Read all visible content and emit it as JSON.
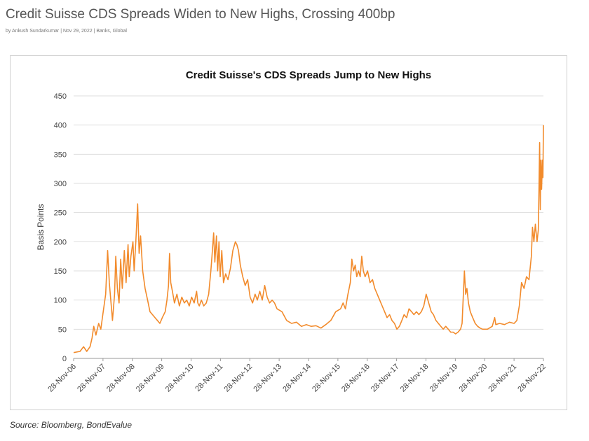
{
  "article": {
    "headline": "Credit Suisse CDS Spreads Widen to New Highs, Crossing 400bp",
    "byline": "by Ankush Sundarkumar | Nov 29, 2022 | Banks, Global",
    "source": "Source: Bloomberg, BondEvalue"
  },
  "colors": {
    "line": "#F28B2C",
    "grid": "#dddddd"
  },
  "chart_data": {
    "type": "line",
    "title": "Credit Suisse's CDS Spreads Jump to New Highs",
    "ylabel": "Basis Points",
    "xlabel": "",
    "ylim": [
      0,
      450
    ],
    "yticks": [
      0,
      50,
      100,
      150,
      200,
      250,
      300,
      350,
      400,
      450
    ],
    "xlim": [
      "2006-11-28",
      "2022-11-28"
    ],
    "xtick_labels": [
      "28-Nov-06",
      "28-Nov-07",
      "28-Nov-08",
      "28-Nov-09",
      "28-Nov-10",
      "28-Nov-11",
      "28-Nov-12",
      "28-Nov-13",
      "28-Nov-14",
      "28-Nov-15",
      "28-Nov-16",
      "28-Nov-17",
      "28-Nov-18",
      "28-Nov-19",
      "28-Nov-20",
      "28-Nov-21",
      "28-Nov-22"
    ],
    "grid": "horizontal",
    "series": [
      {
        "points": [
          [
            "2006-11-28",
            10
          ],
          [
            "2007-02-15",
            12
          ],
          [
            "2007-04-01",
            20
          ],
          [
            "2007-05-10",
            12
          ],
          [
            "2007-06-20",
            20
          ],
          [
            "2007-07-15",
            35
          ],
          [
            "2007-08-05",
            55
          ],
          [
            "2007-09-01",
            40
          ],
          [
            "2007-10-05",
            60
          ],
          [
            "2007-11-01",
            50
          ],
          [
            "2007-12-01",
            80
          ],
          [
            "2008-01-01",
            110
          ],
          [
            "2008-01-25",
            185
          ],
          [
            "2008-02-15",
            130
          ],
          [
            "2008-03-10",
            90
          ],
          [
            "2008-03-25",
            65
          ],
          [
            "2008-04-20",
            110
          ],
          [
            "2008-05-05",
            175
          ],
          [
            "2008-05-25",
            120
          ],
          [
            "2008-06-15",
            95
          ],
          [
            "2008-07-05",
            170
          ],
          [
            "2008-07-25",
            120
          ],
          [
            "2008-08-20",
            185
          ],
          [
            "2008-09-10",
            130
          ],
          [
            "2008-10-05",
            195
          ],
          [
            "2008-10-20",
            140
          ],
          [
            "2008-11-10",
            175
          ],
          [
            "2008-12-05",
            200
          ],
          [
            "2008-12-20",
            150
          ],
          [
            "2009-01-10",
            200
          ],
          [
            "2009-02-01",
            265
          ],
          [
            "2009-02-20",
            180
          ],
          [
            "2009-03-10",
            210
          ],
          [
            "2009-04-05",
            150
          ],
          [
            "2009-05-05",
            120
          ],
          [
            "2009-06-05",
            100
          ],
          [
            "2009-07-05",
            80
          ],
          [
            "2009-08-05",
            75
          ],
          [
            "2009-09-05",
            70
          ],
          [
            "2009-10-05",
            65
          ],
          [
            "2009-11-05",
            60
          ],
          [
            "2009-12-05",
            70
          ],
          [
            "2010-01-10",
            80
          ],
          [
            "2010-02-01",
            100
          ],
          [
            "2010-02-20",
            125
          ],
          [
            "2010-03-05",
            180
          ],
          [
            "2010-03-20",
            130
          ],
          [
            "2010-04-10",
            115
          ],
          [
            "2010-05-05",
            95
          ],
          [
            "2010-06-05",
            110
          ],
          [
            "2010-07-05",
            90
          ],
          [
            "2010-08-05",
            105
          ],
          [
            "2010-09-05",
            95
          ],
          [
            "2010-10-05",
            100
          ],
          [
            "2010-11-05",
            90
          ],
          [
            "2010-12-05",
            105
          ],
          [
            "2011-01-05",
            95
          ],
          [
            "2011-02-05",
            115
          ],
          [
            "2011-02-20",
            95
          ],
          [
            "2011-03-10",
            90
          ],
          [
            "2011-04-05",
            100
          ],
          [
            "2011-05-05",
            90
          ],
          [
            "2011-06-05",
            95
          ],
          [
            "2011-07-05",
            110
          ],
          [
            "2011-08-01",
            150
          ],
          [
            "2011-08-15",
            175
          ],
          [
            "2011-09-05",
            215
          ],
          [
            "2011-09-20",
            165
          ],
          [
            "2011-10-10",
            210
          ],
          [
            "2011-10-25",
            150
          ],
          [
            "2011-11-10",
            200
          ],
          [
            "2011-11-25",
            140
          ],
          [
            "2011-12-15",
            185
          ],
          [
            "2012-01-05",
            130
          ],
          [
            "2012-02-01",
            145
          ],
          [
            "2012-03-01",
            135
          ],
          [
            "2012-04-01",
            155
          ],
          [
            "2012-05-01",
            185
          ],
          [
            "2012-06-01",
            200
          ],
          [
            "2012-06-20",
            195
          ],
          [
            "2012-07-10",
            185
          ],
          [
            "2012-08-01",
            160
          ],
          [
            "2012-09-01",
            140
          ],
          [
            "2012-10-01",
            125
          ],
          [
            "2012-11-01",
            135
          ],
          [
            "2012-12-01",
            105
          ],
          [
            "2013-01-01",
            95
          ],
          [
            "2013-02-01",
            110
          ],
          [
            "2013-03-01",
            100
          ],
          [
            "2013-04-01",
            115
          ],
          [
            "2013-05-01",
            100
          ],
          [
            "2013-06-01",
            125
          ],
          [
            "2013-07-01",
            105
          ],
          [
            "2013-08-01",
            95
          ],
          [
            "2013-09-01",
            100
          ],
          [
            "2013-10-01",
            95
          ],
          [
            "2013-11-01",
            85
          ],
          [
            "2014-01-01",
            80
          ],
          [
            "2014-03-01",
            65
          ],
          [
            "2014-05-01",
            60
          ],
          [
            "2014-07-01",
            62
          ],
          [
            "2014-09-01",
            55
          ],
          [
            "2014-11-01",
            58
          ],
          [
            "2015-01-01",
            55
          ],
          [
            "2015-03-01",
            56
          ],
          [
            "2015-05-01",
            52
          ],
          [
            "2015-07-01",
            58
          ],
          [
            "2015-09-01",
            65
          ],
          [
            "2015-11-01",
            80
          ],
          [
            "2016-01-01",
            85
          ],
          [
            "2016-02-01",
            95
          ],
          [
            "2016-03-01",
            85
          ],
          [
            "2016-04-01",
            110
          ],
          [
            "2016-05-01",
            130
          ],
          [
            "2016-05-20",
            170
          ],
          [
            "2016-06-10",
            150
          ],
          [
            "2016-07-01",
            160
          ],
          [
            "2016-07-20",
            140
          ],
          [
            "2016-08-10",
            150
          ],
          [
            "2016-09-01",
            140
          ],
          [
            "2016-09-20",
            175
          ],
          [
            "2016-10-10",
            150
          ],
          [
            "2016-11-01",
            140
          ],
          [
            "2016-12-01",
            150
          ],
          [
            "2017-01-01",
            130
          ],
          [
            "2017-02-01",
            135
          ],
          [
            "2017-03-01",
            120
          ],
          [
            "2017-04-01",
            110
          ],
          [
            "2017-05-01",
            100
          ],
          [
            "2017-06-01",
            90
          ],
          [
            "2017-07-01",
            80
          ],
          [
            "2017-08-01",
            70
          ],
          [
            "2017-09-01",
            75
          ],
          [
            "2017-10-01",
            65
          ],
          [
            "2017-11-01",
            60
          ],
          [
            "2017-12-01",
            50
          ],
          [
            "2018-01-01",
            55
          ],
          [
            "2018-02-01",
            65
          ],
          [
            "2018-03-01",
            75
          ],
          [
            "2018-04-01",
            70
          ],
          [
            "2018-05-01",
            85
          ],
          [
            "2018-06-01",
            80
          ],
          [
            "2018-07-01",
            75
          ],
          [
            "2018-08-01",
            80
          ],
          [
            "2018-09-01",
            75
          ],
          [
            "2018-10-01",
            80
          ],
          [
            "2018-11-01",
            90
          ],
          [
            "2018-12-01",
            110
          ],
          [
            "2019-01-01",
            95
          ],
          [
            "2019-02-01",
            80
          ],
          [
            "2019-03-01",
            75
          ],
          [
            "2019-04-01",
            65
          ],
          [
            "2019-05-01",
            60
          ],
          [
            "2019-06-01",
            55
          ],
          [
            "2019-07-01",
            50
          ],
          [
            "2019-08-01",
            55
          ],
          [
            "2019-09-01",
            50
          ],
          [
            "2019-10-01",
            45
          ],
          [
            "2019-11-01",
            45
          ],
          [
            "2019-12-01",
            42
          ],
          [
            "2020-01-01",
            45
          ],
          [
            "2020-02-01",
            50
          ],
          [
            "2020-02-20",
            60
          ],
          [
            "2020-03-10",
            120
          ],
          [
            "2020-03-20",
            150
          ],
          [
            "2020-04-05",
            110
          ],
          [
            "2020-04-20",
            120
          ],
          [
            "2020-05-10",
            95
          ],
          [
            "2020-06-01",
            80
          ],
          [
            "2020-07-01",
            70
          ],
          [
            "2020-08-01",
            60
          ],
          [
            "2020-09-01",
            55
          ],
          [
            "2020-10-01",
            52
          ],
          [
            "2020-11-01",
            50
          ],
          [
            "2021-01-01",
            50
          ],
          [
            "2021-03-01",
            55
          ],
          [
            "2021-04-01",
            70
          ],
          [
            "2021-04-15",
            58
          ],
          [
            "2021-06-01",
            60
          ],
          [
            "2021-08-01",
            58
          ],
          [
            "2021-10-01",
            62
          ],
          [
            "2021-11-28",
            60
          ],
          [
            "2022-01-01",
            65
          ],
          [
            "2022-02-01",
            90
          ],
          [
            "2022-03-01",
            130
          ],
          [
            "2022-04-01",
            120
          ],
          [
            "2022-05-01",
            140
          ],
          [
            "2022-06-01",
            135
          ],
          [
            "2022-07-01",
            175
          ],
          [
            "2022-07-15",
            225
          ],
          [
            "2022-08-01",
            200
          ],
          [
            "2022-08-20",
            230
          ],
          [
            "2022-09-10",
            200
          ],
          [
            "2022-09-25",
            220
          ],
          [
            "2022-10-05",
            300
          ],
          [
            "2022-10-12",
            370
          ],
          [
            "2022-10-20",
            255
          ],
          [
            "2022-10-28",
            340
          ],
          [
            "2022-11-05",
            290
          ],
          [
            "2022-11-15",
            340
          ],
          [
            "2022-11-22",
            310
          ],
          [
            "2022-11-28",
            400
          ]
        ]
      }
    ]
  }
}
